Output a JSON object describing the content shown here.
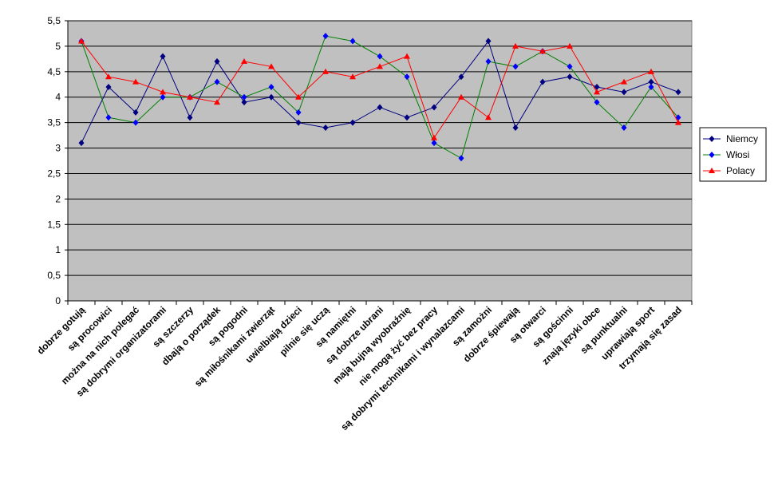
{
  "chart_data": {
    "type": "line",
    "title": "",
    "xlabel": "",
    "ylabel": "",
    "ylim": [
      0,
      5.5
    ],
    "yticks": [
      "0",
      "0,5",
      "1",
      "1,5",
      "2",
      "2,5",
      "3",
      "3,5",
      "4",
      "4,5",
      "5",
      "5,5"
    ],
    "grid": true,
    "legend_position": "right",
    "categories": [
      "dobrze gotują",
      "są procowici",
      "można na nich polegać",
      "są dobrymi organizatorami",
      "są szczerzy",
      "dbają o porządek",
      "są pogodni",
      "są miłośnikami zwierząt",
      "uwielbiają dzieci",
      "pilnie się uczą",
      "są namiętni",
      "są dobrze ubrani",
      "mają bujną wyobraźnię",
      "nie mogą żyć bez pracy",
      "są dobrymi technikami i wynalazcami",
      "są zamożni",
      "dobrze śpiewają",
      "są otwarci",
      "są gościnni",
      "znają języki obce",
      "są punktualni",
      "uprawiają sport",
      "trzymają się zasad"
    ],
    "series": [
      {
        "name": "Niemcy",
        "color": "#000080",
        "marker": "diamond",
        "values": [
          3.1,
          4.2,
          3.7,
          4.8,
          3.6,
          4.7,
          3.9,
          4.0,
          3.5,
          3.4,
          3.5,
          3.8,
          3.6,
          3.8,
          4.4,
          5.1,
          3.4,
          4.3,
          4.4,
          4.2,
          4.1,
          4.3,
          4.1
        ]
      },
      {
        "name": "Włosi",
        "color": "#008000",
        "marker": "diamond",
        "values": [
          5.1,
          3.6,
          3.5,
          4.0,
          4.0,
          4.3,
          4.0,
          4.2,
          3.7,
          5.2,
          5.1,
          4.8,
          4.4,
          3.1,
          2.8,
          4.7,
          4.6,
          4.9,
          4.6,
          3.9,
          3.4,
          4.2,
          3.6
        ]
      },
      {
        "name": "Polacy",
        "color": "#ff0000",
        "marker": "triangle",
        "values": [
          5.1,
          4.4,
          4.3,
          4.1,
          4.0,
          3.9,
          4.7,
          4.6,
          4.0,
          4.5,
          4.4,
          4.6,
          4.8,
          3.2,
          4.0,
          3.6,
          5.0,
          4.9,
          5.0,
          4.1,
          4.3,
          4.5,
          3.5
        ]
      }
    ]
  }
}
